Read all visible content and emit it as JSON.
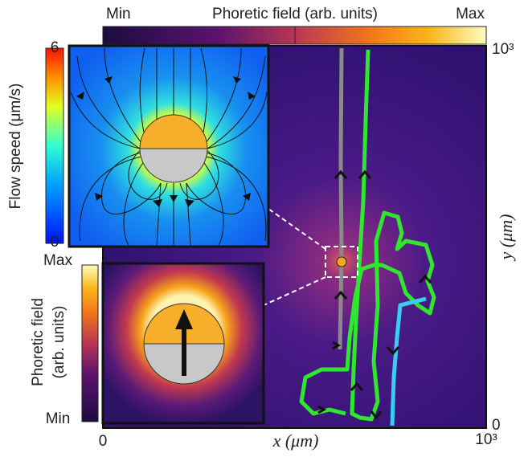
{
  "top_colorbar": {
    "min_label": "Min",
    "title": "Phoretic field (arb. units)",
    "max_label": "Max"
  },
  "flow_colorbar": {
    "max_label": "6",
    "title": "Flow speed (μm/s)",
    "min_label": "0"
  },
  "phoretic_colorbar": {
    "max_label": "Max",
    "title_line1": "Phoretic field",
    "title_line2": "(arb. units)",
    "min_label": "Min"
  },
  "x_axis": {
    "start_label": "0",
    "title": "x (μm)",
    "end_label": "10³"
  },
  "y_axis": {
    "end_label": "10³",
    "title": "y (μm)",
    "start_label": "0"
  }
}
